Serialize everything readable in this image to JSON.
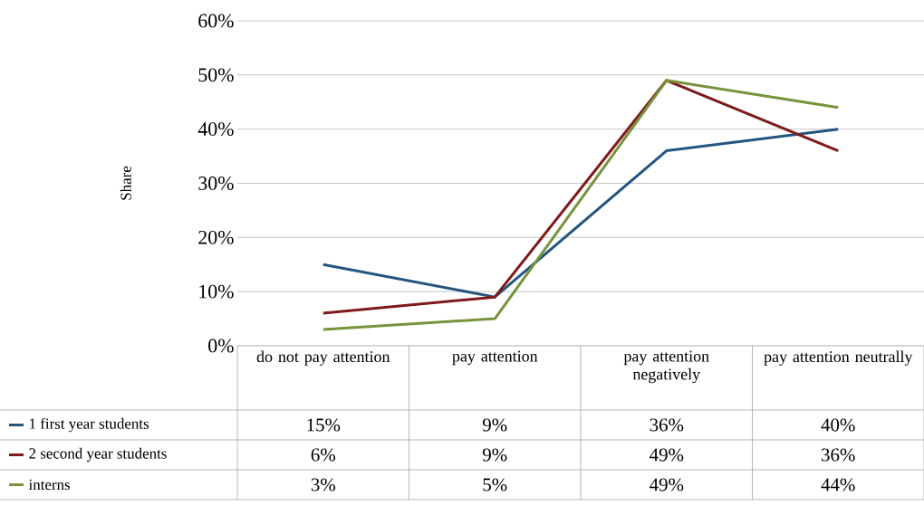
{
  "chart_data": {
    "type": "line",
    "ylabel": "Share",
    "categories": [
      "do not pay attention",
      "pay attention",
      "pay attention negatively",
      "pay attention neutrally"
    ],
    "series": [
      {
        "name": "1 first year students",
        "color": "#24557f",
        "values": [
          15,
          9,
          36,
          40
        ],
        "value_labels": [
          "15%",
          "9%",
          "36%",
          "40%"
        ]
      },
      {
        "name": "2 second year students",
        "color": "#7f1a1a",
        "values": [
          6,
          9,
          49,
          36
        ],
        "value_labels": [
          "6%",
          "9%",
          "49%",
          "36%"
        ]
      },
      {
        "name": "interns",
        "color": "#77933c",
        "values": [
          3,
          5,
          49,
          44
        ],
        "value_labels": [
          "3%",
          "5%",
          "49%",
          "44%"
        ]
      }
    ],
    "ylim": [
      0,
      60
    ],
    "yticks": [
      {
        "value": 0,
        "label": "0%"
      },
      {
        "value": 10,
        "label": "10%"
      },
      {
        "value": 20,
        "label": "20%"
      },
      {
        "value": 30,
        "label": "30%"
      },
      {
        "value": 40,
        "label": "40%"
      },
      {
        "value": 50,
        "label": "50%"
      },
      {
        "value": 60,
        "label": "60%"
      }
    ],
    "grid": "y",
    "legend": "bottom",
    "marker": "none",
    "line_style": "solid"
  }
}
